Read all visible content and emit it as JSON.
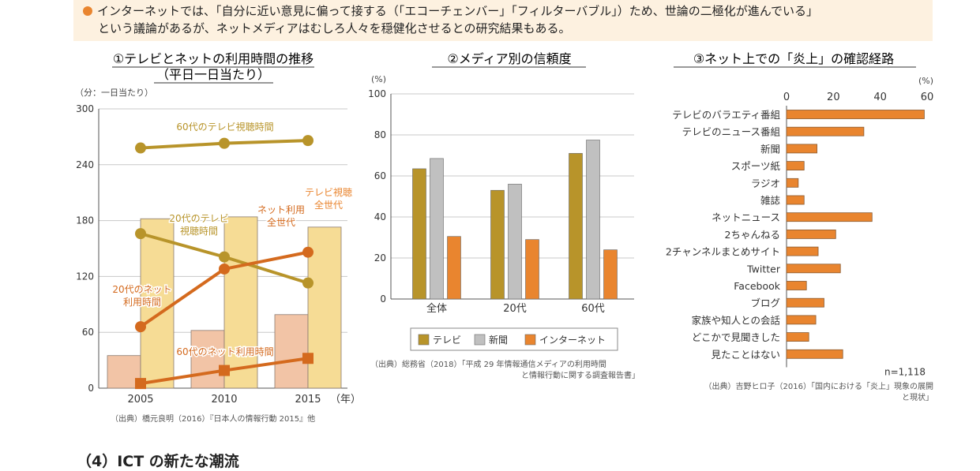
{
  "banner": {
    "line1": "インターネットでは、「自分に近い意見に偏って接する（「エコーチェンバー」「フィルターバブル」）ため、世論の二極化が進んでいる」",
    "line2": "という議論があるが、ネットメディアはむしろ人々を穏健化させるとの研究結果もある。"
  },
  "section_heading": "（4）ICT の新たな潮流",
  "colors": {
    "orange": "#e9852f",
    "dark_orange": "#d46a1e",
    "gold": "#b8942a",
    "gray": "#c0c0c0",
    "light_yellow": "#f6dc95",
    "light_pink": "#f2c4a6",
    "grid": "#c8c8c8"
  },
  "chart_data": [
    {
      "type": "bar+line",
      "title": "①テレビとネットの利用時間の推移",
      "subtitle": "（平日一日当たり）",
      "ylabel": "（分：一日当たり）",
      "xlabel": "（年）",
      "ylim": [
        0,
        300
      ],
      "yticks": [
        0,
        60,
        120,
        180,
        240,
        300
      ],
      "categories": [
        "2005",
        "2010",
        "2015"
      ],
      "bars": [
        {
          "name": "ネット利用 全世代",
          "values": [
            35,
            62,
            79
          ]
        },
        {
          "name": "テレビ視聴 全世代",
          "values": [
            182,
            184,
            173
          ]
        }
      ],
      "lines": [
        {
          "name": "60代のテレビ視聴時間",
          "values": [
            258,
            263,
            266
          ]
        },
        {
          "name": "20代のテレビ 視聴時間",
          "values": [
            166,
            141,
            113
          ]
        },
        {
          "name": "20代のネット 利用時間",
          "values": [
            66,
            128,
            146
          ]
        },
        {
          "name": "60代のネット利用時間",
          "values": [
            5,
            19,
            32
          ]
        }
      ],
      "source": "（出典）橋元良明（2016）『日本人の情報行動 2015』他"
    },
    {
      "type": "bar",
      "title": "②メディア別の信頼度",
      "ylabel": "(%)",
      "ylim": [
        0,
        100
      ],
      "yticks": [
        0,
        20,
        40,
        60,
        80,
        100
      ],
      "categories": [
        "全体",
        "20代",
        "60代"
      ],
      "series": [
        {
          "name": "テレビ",
          "values": [
            63.5,
            53.0,
            71.0
          ]
        },
        {
          "name": "新聞",
          "values": [
            68.5,
            56.0,
            77.5
          ]
        },
        {
          "name": "インターネット",
          "values": [
            30.5,
            29.0,
            24.0
          ]
        }
      ],
      "source_line1": "（出典）総務省（2018）「平成 29 年情報通信メディアの利用時間",
      "source_line2": "と情報行動に関する調査報告書」"
    },
    {
      "type": "bar",
      "orientation": "horizontal",
      "title": "③ネット上での「炎上」の確認経路",
      "xlabel": "(%)",
      "xlim": [
        0,
        60
      ],
      "xticks": [
        0,
        20,
        40,
        60
      ],
      "categories": [
        "テレビのバラエティ番組",
        "テレビのニュース番組",
        "新聞",
        "スポーツ紙",
        "ラジオ",
        "雑誌",
        "ネットニュース",
        "2ちゃんねる",
        "2チャンネルまとめサイト",
        "Twitter",
        "Facebook",
        "ブログ",
        "家族や知人との会話",
        "どこかで見聞きした",
        "見たことはない"
      ],
      "values": [
        58.8,
        33.0,
        13.0,
        7.5,
        5.0,
        7.5,
        36.5,
        21.0,
        13.5,
        23.0,
        8.5,
        16.0,
        12.5,
        9.5,
        24.0
      ],
      "note": "n=1,118",
      "source_line1": "（出典）吉野ヒロ子（2016）「国内における「炎上」現象の展開",
      "source_line2": "と現状」"
    }
  ]
}
